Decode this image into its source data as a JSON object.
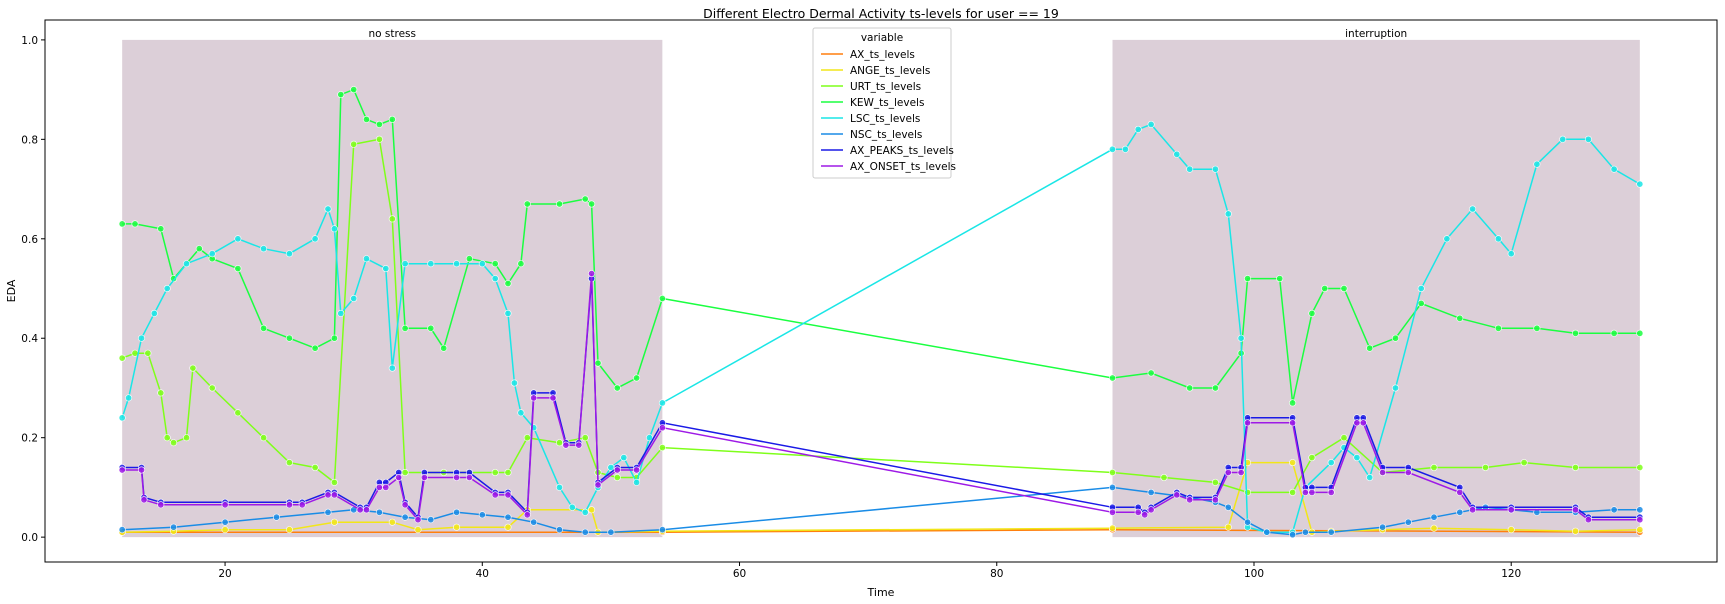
{
  "chart_data": {
    "type": "line",
    "title": "Different Electro Dermal Activity ts-levels for user == 19",
    "xlabel": "Time",
    "ylabel": "EDA",
    "xlim": [
      6,
      136
    ],
    "ylim": [
      -0.05,
      1.04
    ],
    "xticks": [
      20,
      40,
      60,
      80,
      100,
      120
    ],
    "yticks": [
      0.0,
      0.2,
      0.4,
      0.6,
      0.8,
      1.0
    ],
    "grid": false,
    "legend": {
      "title": "variable",
      "placement": "top-center"
    },
    "regions": [
      {
        "label": "no stress",
        "x": [
          12,
          54
        ],
        "y": [
          0,
          1.0
        ],
        "color": "#dccfd8"
      },
      {
        "label": "interruption",
        "x": [
          89,
          130
        ],
        "y": [
          0,
          1.0
        ],
        "color": "#dccfd8"
      }
    ],
    "series": [
      {
        "name": "AX_ts_levels",
        "color": "#ff7f0e",
        "x": [
          12,
          54,
          89,
          130
        ],
        "y": [
          0.01,
          0.01,
          0.015,
          0.01
        ]
      },
      {
        "name": "ANGE_ts_levels",
        "color": "#f2e619",
        "x": [
          12,
          16,
          20,
          25,
          28.5,
          33,
          35,
          38,
          42,
          43.5,
          48.5,
          49,
          54,
          89,
          98,
          99.5,
          103,
          104.5,
          106,
          110,
          114,
          120,
          125,
          130
        ],
        "y": [
          0.01,
          0.012,
          0.015,
          0.015,
          0.03,
          0.03,
          0.015,
          0.02,
          0.02,
          0.055,
          0.055,
          0.01,
          0.012,
          0.018,
          0.02,
          0.15,
          0.15,
          0.01,
          0.012,
          0.015,
          0.018,
          0.015,
          0.012,
          0.015
        ]
      },
      {
        "name": "URT_ts_levels",
        "color": "#7fff1a",
        "x": [
          12,
          13,
          14,
          15,
          15.5,
          16,
          17,
          17.5,
          19,
          21,
          23,
          25,
          27,
          28.5,
          30,
          32,
          33,
          34,
          37,
          39,
          41,
          42,
          43.5,
          46,
          48,
          49,
          50.5,
          52,
          54,
          89,
          93,
          97,
          99.5,
          103,
          104.5,
          107,
          110,
          114,
          118,
          121,
          125,
          130
        ],
        "y": [
          0.36,
          0.37,
          0.37,
          0.29,
          0.2,
          0.19,
          0.2,
          0.34,
          0.3,
          0.25,
          0.2,
          0.15,
          0.14,
          0.11,
          0.79,
          0.8,
          0.64,
          0.13,
          0.13,
          0.13,
          0.13,
          0.13,
          0.2,
          0.19,
          0.2,
          0.13,
          0.12,
          0.12,
          0.18,
          0.13,
          0.12,
          0.11,
          0.09,
          0.09,
          0.16,
          0.2,
          0.13,
          0.14,
          0.14,
          0.15,
          0.14,
          0.14
        ]
      },
      {
        "name": "KEW_ts_levels",
        "color": "#1aff40",
        "x": [
          12,
          13,
          15,
          16,
          18,
          19,
          21,
          23,
          25,
          27,
          28.5,
          29,
          30,
          31,
          32,
          33,
          34,
          36,
          37,
          39,
          41,
          42,
          43,
          43.5,
          46,
          48,
          48.5,
          49,
          50.5,
          52,
          54,
          89,
          92,
          95,
          97,
          99,
          99.5,
          102,
          103,
          104.5,
          105.5,
          107,
          109,
          111,
          113,
          116,
          119,
          122,
          125,
          128,
          130
        ],
        "y": [
          0.63,
          0.63,
          0.62,
          0.52,
          0.58,
          0.56,
          0.54,
          0.42,
          0.4,
          0.38,
          0.4,
          0.89,
          0.9,
          0.84,
          0.83,
          0.84,
          0.42,
          0.42,
          0.38,
          0.56,
          0.55,
          0.51,
          0.55,
          0.67,
          0.67,
          0.68,
          0.67,
          0.35,
          0.3,
          0.32,
          0.48,
          0.32,
          0.33,
          0.3,
          0.3,
          0.37,
          0.52,
          0.52,
          0.27,
          0.45,
          0.5,
          0.5,
          0.38,
          0.4,
          0.47,
          0.44,
          0.42,
          0.42,
          0.41,
          0.41,
          0.41
        ]
      },
      {
        "name": "LSC_ts_levels",
        "color": "#1ae6e6",
        "x": [
          12,
          12.5,
          13.5,
          14.5,
          15.5,
          17,
          19,
          21,
          23,
          25,
          27,
          28,
          28.5,
          29,
          30,
          31,
          32.5,
          33,
          34,
          36,
          38,
          40,
          41,
          42,
          42.5,
          43,
          44,
          46,
          47,
          48,
          49,
          50,
          51,
          52,
          53,
          54,
          89,
          90,
          91,
          92,
          94,
          95,
          97,
          98,
          99,
          99.5,
          101,
          103,
          104,
          106,
          107,
          108,
          109,
          111,
          113,
          115,
          117,
          119,
          120,
          122,
          124,
          126,
          128,
          130
        ],
        "y": [
          0.24,
          0.28,
          0.4,
          0.45,
          0.5,
          0.55,
          0.57,
          0.6,
          0.58,
          0.57,
          0.6,
          0.66,
          0.62,
          0.45,
          0.48,
          0.56,
          0.54,
          0.34,
          0.55,
          0.55,
          0.55,
          0.55,
          0.52,
          0.45,
          0.31,
          0.25,
          0.22,
          0.1,
          0.06,
          0.05,
          0.1,
          0.14,
          0.16,
          0.11,
          0.2,
          0.27,
          0.78,
          0.78,
          0.82,
          0.83,
          0.77,
          0.74,
          0.74,
          0.65,
          0.4,
          0.02,
          0.01,
          0.01,
          0.1,
          0.15,
          0.18,
          0.16,
          0.12,
          0.3,
          0.5,
          0.6,
          0.66,
          0.6,
          0.57,
          0.75,
          0.8,
          0.8,
          0.74,
          0.71
        ]
      },
      {
        "name": "NSC_ts_levels",
        "color": "#1a8ce6",
        "x": [
          12,
          16,
          20,
          24,
          28,
          30,
          32,
          34,
          36,
          38,
          40,
          42,
          44,
          46,
          48,
          50,
          54,
          89,
          92,
          95,
          97,
          98,
          99.5,
          101,
          103,
          104,
          106,
          110,
          112,
          114,
          116,
          118,
          120,
          122,
          125,
          128,
          130
        ],
        "y": [
          0.015,
          0.02,
          0.03,
          0.04,
          0.05,
          0.055,
          0.05,
          0.04,
          0.035,
          0.05,
          0.045,
          0.04,
          0.03,
          0.015,
          0.01,
          0.01,
          0.015,
          0.1,
          0.09,
          0.08,
          0.07,
          0.06,
          0.03,
          0.01,
          0.005,
          0.01,
          0.01,
          0.02,
          0.03,
          0.04,
          0.05,
          0.06,
          0.055,
          0.05,
          0.05,
          0.055,
          0.055
        ]
      },
      {
        "name": "AX_PEAKS_ts_levels",
        "color": "#1a1ae6",
        "x": [
          12,
          13.5,
          13.7,
          15,
          20,
          25,
          26,
          28,
          28.5,
          30.5,
          31,
          32,
          32.5,
          33.5,
          34,
          35,
          35.5,
          38,
          39,
          41,
          42,
          43.5,
          44,
          45.5,
          46.5,
          47.5,
          48.5,
          49,
          50.5,
          52,
          54,
          89,
          91,
          91.5,
          92,
          94,
          95,
          97,
          98,
          99,
          99.5,
          103,
          104,
          104.5,
          106,
          108,
          108.5,
          110,
          112,
          116,
          117,
          120,
          125,
          126,
          130
        ],
        "y": [
          0.14,
          0.14,
          0.08,
          0.07,
          0.07,
          0.07,
          0.07,
          0.09,
          0.09,
          0.06,
          0.06,
          0.11,
          0.11,
          0.13,
          0.07,
          0.04,
          0.13,
          0.13,
          0.13,
          0.09,
          0.09,
          0.05,
          0.29,
          0.29,
          0.19,
          0.19,
          0.52,
          0.11,
          0.14,
          0.14,
          0.23,
          0.06,
          0.06,
          0.05,
          0.06,
          0.09,
          0.08,
          0.08,
          0.14,
          0.14,
          0.24,
          0.24,
          0.1,
          0.1,
          0.1,
          0.24,
          0.24,
          0.14,
          0.14,
          0.1,
          0.06,
          0.06,
          0.06,
          0.04,
          0.04
        ]
      },
      {
        "name": "AX_ONSET_ts_levels",
        "color": "#9e1ae6",
        "x": [
          12,
          13.5,
          13.7,
          15,
          20,
          25,
          26,
          28,
          28.5,
          30.5,
          31,
          32,
          32.5,
          33.5,
          34,
          35,
          35.5,
          38,
          39,
          41,
          42,
          43.5,
          44,
          45.5,
          46.5,
          47.5,
          48.5,
          49,
          50.5,
          52,
          54,
          89,
          91,
          91.5,
          92,
          94,
          95,
          97,
          98,
          99,
          99.5,
          103,
          104,
          104.5,
          106,
          108,
          108.5,
          110,
          112,
          116,
          117,
          120,
          125,
          126,
          130
        ],
        "y": [
          0.135,
          0.135,
          0.075,
          0.065,
          0.065,
          0.065,
          0.065,
          0.085,
          0.085,
          0.055,
          0.055,
          0.1,
          0.1,
          0.12,
          0.065,
          0.035,
          0.12,
          0.12,
          0.12,
          0.085,
          0.085,
          0.045,
          0.28,
          0.28,
          0.185,
          0.185,
          0.53,
          0.105,
          0.135,
          0.135,
          0.22,
          0.05,
          0.05,
          0.045,
          0.055,
          0.085,
          0.075,
          0.075,
          0.13,
          0.13,
          0.23,
          0.23,
          0.09,
          0.09,
          0.09,
          0.23,
          0.23,
          0.13,
          0.13,
          0.09,
          0.055,
          0.055,
          0.055,
          0.035,
          0.035
        ]
      }
    ]
  }
}
